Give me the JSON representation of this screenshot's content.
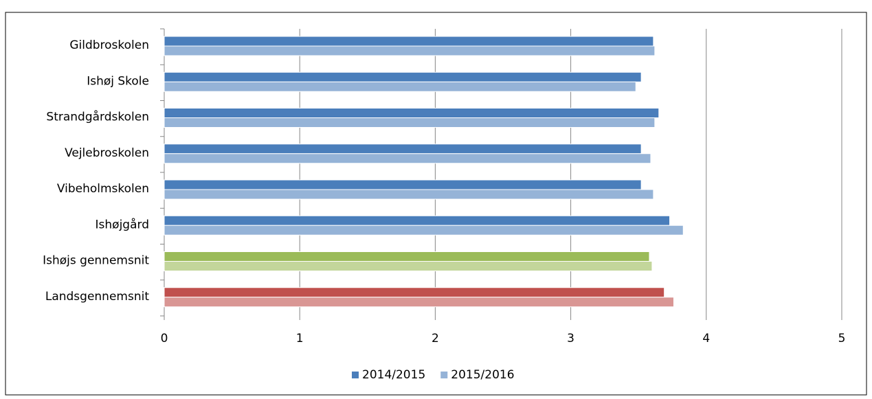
{
  "chart_data": {
    "type": "bar",
    "orientation": "horizontal",
    "categories": [
      "Gildbroskolen",
      "Ishøj Skole",
      "Strandgårdskolen",
      "Vejlebroskolen",
      "Vibeholmskolen",
      "Ishøjgård",
      "Ishøjs gennemsnit",
      "Landsgennemsnit"
    ],
    "series": [
      {
        "name": "2014/2015",
        "color": "#4a7ebb",
        "colors": [
          "#4a7ebb",
          "#4a7ebb",
          "#4a7ebb",
          "#4a7ebb",
          "#4a7ebb",
          "#4a7ebb",
          "#9bbb59",
          "#c0504d"
        ],
        "values": [
          3.61,
          3.52,
          3.65,
          3.52,
          3.52,
          3.73,
          3.58,
          3.69
        ]
      },
      {
        "name": "2015/2016",
        "color": "#95b3d7",
        "colors": [
          "#95b3d7",
          "#95b3d7",
          "#95b3d7",
          "#95b3d7",
          "#95b3d7",
          "#95b3d7",
          "#c3d69b",
          "#d99694"
        ],
        "values": [
          3.62,
          3.48,
          3.62,
          3.59,
          3.61,
          3.83,
          3.6,
          3.76
        ]
      }
    ],
    "xlim": [
      0,
      5
    ],
    "xticks": [
      0,
      1,
      2,
      3,
      4,
      5
    ],
    "grid": true,
    "legend": "bottom"
  }
}
